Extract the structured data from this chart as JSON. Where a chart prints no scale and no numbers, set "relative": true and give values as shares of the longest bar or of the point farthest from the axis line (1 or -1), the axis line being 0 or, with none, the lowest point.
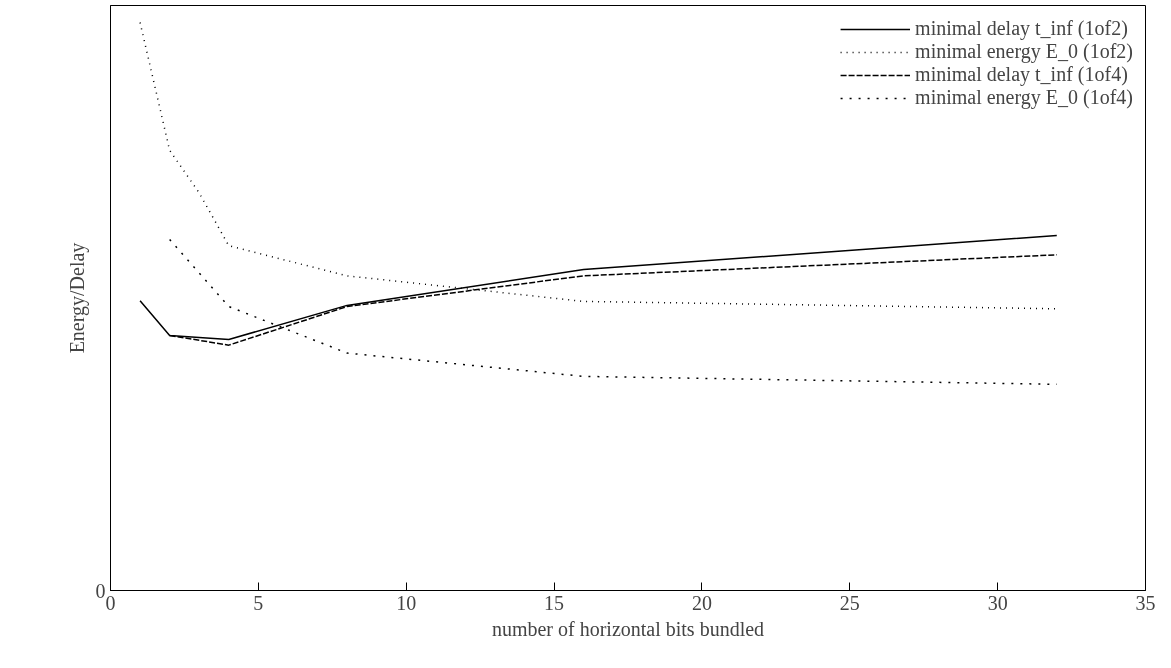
{
  "chart_data": {
    "type": "line",
    "relative": true,
    "xlabel": "number of horizontal bits bundled",
    "ylabel": "Energy/Delay",
    "annotations": [
      "0"
    ],
    "xlim": [
      0,
      35
    ],
    "xticks": [
      0,
      5,
      10,
      15,
      20,
      25,
      30,
      35
    ],
    "grid": false,
    "legend": "top right",
    "marker": "none",
    "series": [
      {
        "name": "minimal delay t_inf (1of2)",
        "color": "#000000",
        "line_style": "solid",
        "x": [
          1,
          2,
          4,
          8,
          16,
          32
        ],
        "values": [
          0.51,
          0.449,
          0.442,
          0.502,
          0.565,
          0.625
        ]
      },
      {
        "name": "minimal energy E_0 (1of2)",
        "color": "#000000",
        "line_style": "dotted",
        "x": [
          1,
          2,
          3,
          4,
          8,
          16,
          32
        ],
        "values": [
          1,
          0.775,
          0.7,
          0.607,
          0.554,
          0.509,
          0.496
        ]
      },
      {
        "name": "minimal delay t_inf (1of4)",
        "color": "#000000",
        "line_style": "dashed",
        "x": [
          2,
          4,
          8,
          16,
          32
        ],
        "values": [
          0.449,
          0.432,
          0.5,
          0.554,
          0.591
        ]
      },
      {
        "name": "minimal energy E_0 (1of4)",
        "color": "#000000",
        "line_style": "dotted",
        "x": [
          2,
          4,
          8,
          16,
          32
        ],
        "values": [
          0.618,
          0.5,
          0.418,
          0.377,
          0.363
        ]
      }
    ]
  }
}
